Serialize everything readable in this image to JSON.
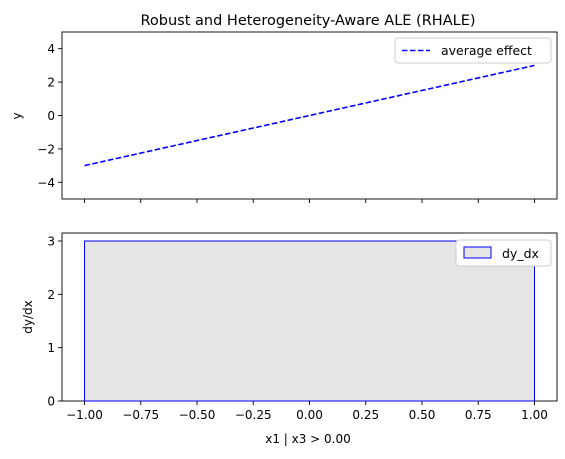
{
  "chart_data": [
    {
      "type": "line",
      "title": "Robust and Heterogeneity-Aware ALE (RHALE)",
      "xlabel": "",
      "ylabel": "y",
      "xlim": [
        -1.1,
        1.1
      ],
      "ylim": [
        -5,
        5
      ],
      "x_ticks": [
        -1.0,
        -0.75,
        -0.5,
        -0.25,
        0.0,
        0.25,
        0.5,
        0.75,
        1.0
      ],
      "y_ticks": [
        -4,
        -2,
        0,
        2,
        4
      ],
      "y_tick_labels": [
        "−4",
        "−2",
        "0",
        "2",
        "4"
      ],
      "grid": false,
      "legend_position": "upper right",
      "series": [
        {
          "name": "average effect",
          "style": "dashed",
          "color": "#0000ff",
          "x": [
            -1.0,
            1.0
          ],
          "y": [
            -3,
            3
          ]
        }
      ]
    },
    {
      "type": "bar",
      "title": "",
      "xlabel": "x1 | x3 > 0.00",
      "ylabel": "dy/dx",
      "xlim": [
        -1.1,
        1.1
      ],
      "ylim": [
        0,
        3.15
      ],
      "x_ticks": [
        -1.0,
        -0.75,
        -0.5,
        -0.25,
        0.0,
        0.25,
        0.5,
        0.75,
        1.0
      ],
      "x_tick_labels": [
        "−1.00",
        "−0.75",
        "−0.50",
        "−0.25",
        "0.00",
        "0.25",
        "0.50",
        "0.75",
        "1.00"
      ],
      "y_ticks": [
        0,
        1,
        2,
        3
      ],
      "y_tick_labels": [
        "0",
        "1",
        "2",
        "3"
      ],
      "grid": false,
      "legend_position": "upper right",
      "series": [
        {
          "name": "dy_dx",
          "fill": "#e5e5e5",
          "edge": "#0000ff",
          "bins": [
            {
              "x0": -1.0,
              "x1": 1.0,
              "value": 3
            }
          ]
        }
      ]
    }
  ]
}
